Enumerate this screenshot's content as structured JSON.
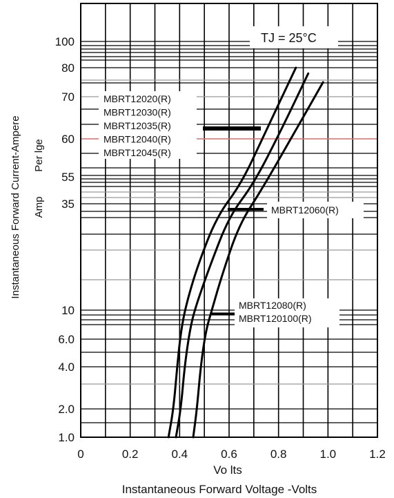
{
  "chart_data": {
    "type": "line",
    "xlabel_top": "Vo lts",
    "xlabel_bottom": "Instantaneous  Forward Voltage -Volts",
    "ylabel_line1": "Instantaneous  Forward  Current-Ampere",
    "ylabel_line2": "Per lge",
    "ylabel_line3": "Amp",
    "condition": "TJ = 25°C",
    "xlim": [
      0,
      1.2
    ],
    "x_ticks": [
      {
        "value": 0,
        "label": "0"
      },
      {
        "value": 0.2,
        "label": "0.2"
      },
      {
        "value": 0.4,
        "label": "0.4"
      },
      {
        "value": 0.6,
        "label": "0.6"
      },
      {
        "value": 0.8,
        "label": "0.8"
      },
      {
        "value": 1.0,
        "label": "1.0"
      },
      {
        "value": 1.2,
        "label": "1.2"
      }
    ],
    "y_ticks": [
      {
        "label": "100"
      },
      {
        "label": "80"
      },
      {
        "label": "70"
      },
      {
        "label": "60"
      },
      {
        "label": "55"
      },
      {
        "label": "35"
      },
      {
        "label": "10"
      },
      {
        "label": "6.0"
      },
      {
        "label": "4.0"
      },
      {
        "label": "2.0"
      },
      {
        "label": "1.0"
      }
    ],
    "series_groups": [
      {
        "labels": [
          "MBRT12020(R)",
          "MBRT12030(R)",
          "MBRT12035(R)",
          "MBRT12040(R)",
          "MBRT12045(R)"
        ],
        "points": [
          [
            0.355,
            1.0
          ],
          [
            0.375,
            2.0
          ],
          [
            0.39,
            4.0
          ],
          [
            0.405,
            7.0
          ],
          [
            0.425,
            11.0
          ],
          [
            0.47,
            20.0
          ],
          [
            0.55,
            32.0
          ],
          [
            0.65,
            50.0
          ],
          [
            0.75,
            62.0
          ],
          [
            0.87,
            80.0
          ]
        ]
      },
      {
        "labels": [
          "MBRT12060(R)"
        ],
        "points": [
          [
            0.385,
            1.0
          ],
          [
            0.405,
            2.0
          ],
          [
            0.42,
            4.0
          ],
          [
            0.44,
            7.0
          ],
          [
            0.46,
            10.0
          ],
          [
            0.52,
            20.0
          ],
          [
            0.6,
            32.0
          ],
          [
            0.7,
            50.0
          ],
          [
            0.81,
            62.0
          ],
          [
            0.92,
            78.0
          ]
        ]
      },
      {
        "labels": [
          "MBRT12080(R)",
          "MBRT120100(R)"
        ],
        "points": [
          [
            0.455,
            1.0
          ],
          [
            0.47,
            2.0
          ],
          [
            0.485,
            4.0
          ],
          [
            0.505,
            7.0
          ],
          [
            0.53,
            10.0
          ],
          [
            0.57,
            18.0
          ],
          [
            0.64,
            30.0
          ],
          [
            0.73,
            45.0
          ],
          [
            0.85,
            60.0
          ],
          [
            0.98,
            75.0
          ]
        ]
      }
    ],
    "grid": true,
    "highlight_color": "#f08080"
  }
}
